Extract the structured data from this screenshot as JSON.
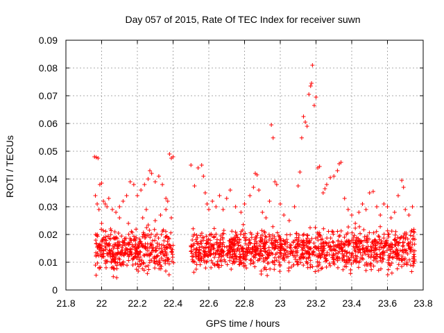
{
  "chart_data": {
    "type": "scatter",
    "title": "Day 057 of 2015, Rate Of TEC Index for receiver suwn",
    "xlabel": "GPS time / hours",
    "ylabel": "ROTI / TECUs",
    "xlim": [
      21.8,
      23.8
    ],
    "ylim": [
      0,
      0.09
    ],
    "xticks": [
      21.8,
      22,
      22.2,
      22.4,
      22.6,
      22.8,
      23,
      23.2,
      23.4,
      23.6,
      23.8
    ],
    "xtick_labels": [
      "21.8",
      "22",
      "22.2",
      "22.4",
      "22.6",
      "22.8",
      "23",
      "23.2",
      "23.4",
      "23.6",
      "23.8"
    ],
    "yticks": [
      0,
      0.01,
      0.02,
      0.03,
      0.04,
      0.05,
      0.06,
      0.07,
      0.08,
      0.09
    ],
    "ytick_labels": [
      "0",
      "0.01",
      "0.02",
      "0.03",
      "0.04",
      "0.05",
      "0.06",
      "0.07",
      "0.08",
      "0.09"
    ],
    "grid": true,
    "marker": "+",
    "marker_color": "#ff0000",
    "series": [
      {
        "name": "ROTI",
        "points": [
          [
            21.96,
            0.048
          ],
          [
            21.97,
            0.0478
          ],
          [
            21.98,
            0.0475
          ],
          [
            21.965,
            0.034
          ],
          [
            21.975,
            0.031
          ],
          [
            21.985,
            0.029
          ],
          [
            21.99,
            0.038
          ],
          [
            22.0,
            0.0385
          ],
          [
            22.01,
            0.032
          ],
          [
            22.02,
            0.031
          ],
          [
            22.03,
            0.03
          ],
          [
            22.04,
            0.033
          ],
          [
            22.06,
            0.029
          ],
          [
            22.08,
            0.028
          ],
          [
            22.1,
            0.03
          ],
          [
            22.12,
            0.032
          ],
          [
            22.14,
            0.034
          ],
          [
            22.16,
            0.039
          ],
          [
            22.18,
            0.038
          ],
          [
            22.2,
            0.034
          ],
          [
            22.22,
            0.036
          ],
          [
            22.24,
            0.038
          ],
          [
            22.26,
            0.04
          ],
          [
            22.27,
            0.043
          ],
          [
            22.28,
            0.042
          ],
          [
            22.3,
            0.039
          ],
          [
            22.32,
            0.041
          ],
          [
            22.34,
            0.038
          ],
          [
            22.36,
            0.033
          ],
          [
            22.37,
            0.032
          ],
          [
            22.38,
            0.049
          ],
          [
            22.39,
            0.0475
          ],
          [
            22.4,
            0.048
          ],
          [
            22.23,
            0.026
          ],
          [
            22.25,
            0.029
          ],
          [
            22.3,
            0.025
          ],
          [
            22.33,
            0.027
          ],
          [
            22.36,
            0.029
          ],
          [
            22.39,
            0.026
          ],
          [
            22.0,
            0.024
          ],
          [
            22.05,
            0.022
          ],
          [
            22.1,
            0.026
          ],
          [
            22.15,
            0.024
          ],
          [
            22.5,
            0.045
          ],
          [
            22.52,
            0.0375
          ],
          [
            22.54,
            0.044
          ],
          [
            22.56,
            0.045
          ],
          [
            22.57,
            0.041
          ],
          [
            22.58,
            0.035
          ],
          [
            22.59,
            0.031
          ],
          [
            22.6,
            0.029
          ],
          [
            22.62,
            0.032
          ],
          [
            22.64,
            0.03
          ],
          [
            22.66,
            0.034
          ],
          [
            22.68,
            0.029
          ],
          [
            22.7,
            0.033
          ],
          [
            22.72,
            0.036
          ],
          [
            22.75,
            0.03
          ],
          [
            22.78,
            0.028
          ],
          [
            22.8,
            0.031
          ],
          [
            22.83,
            0.034
          ],
          [
            22.85,
            0.037
          ],
          [
            22.86,
            0.042
          ],
          [
            22.87,
            0.0415
          ],
          [
            22.88,
            0.036
          ],
          [
            22.9,
            0.028
          ],
          [
            22.92,
            0.026
          ],
          [
            22.94,
            0.032
          ],
          [
            22.95,
            0.0595
          ],
          [
            22.96,
            0.0548
          ],
          [
            22.97,
            0.039
          ],
          [
            22.98,
            0.038
          ],
          [
            23.0,
            0.031
          ],
          [
            23.02,
            0.027
          ],
          [
            23.05,
            0.025
          ],
          [
            23.08,
            0.03
          ],
          [
            23.1,
            0.0375
          ],
          [
            23.11,
            0.0425
          ],
          [
            23.12,
            0.0548
          ],
          [
            23.13,
            0.0625
          ],
          [
            23.14,
            0.0605
          ],
          [
            23.15,
            0.059
          ],
          [
            23.16,
            0.0705
          ],
          [
            23.17,
            0.0735
          ],
          [
            23.175,
            0.0745
          ],
          [
            23.18,
            0.081
          ],
          [
            23.19,
            0.0665
          ],
          [
            23.2,
            0.0695
          ],
          [
            23.21,
            0.044
          ],
          [
            23.22,
            0.0445
          ],
          [
            23.24,
            0.035
          ],
          [
            23.25,
            0.0365
          ],
          [
            23.26,
            0.038
          ],
          [
            23.28,
            0.0405
          ],
          [
            23.3,
            0.041
          ],
          [
            23.32,
            0.043
          ],
          [
            23.33,
            0.0455
          ],
          [
            23.34,
            0.046
          ],
          [
            23.36,
            0.033
          ],
          [
            23.38,
            0.029
          ],
          [
            23.4,
            0.027
          ],
          [
            23.42,
            0.024
          ],
          [
            23.44,
            0.028
          ],
          [
            23.46,
            0.031
          ],
          [
            23.48,
            0.029
          ],
          [
            23.5,
            0.035
          ],
          [
            23.52,
            0.0355
          ],
          [
            23.54,
            0.03
          ],
          [
            23.56,
            0.027
          ],
          [
            23.58,
            0.031
          ],
          [
            23.6,
            0.03
          ],
          [
            23.62,
            0.026
          ],
          [
            23.64,
            0.028
          ],
          [
            23.66,
            0.034
          ],
          [
            23.68,
            0.0395
          ],
          [
            23.69,
            0.037
          ],
          [
            23.7,
            0.029
          ],
          [
            23.72,
            0.027
          ],
          [
            23.74,
            0.03
          ]
        ]
      }
    ]
  }
}
